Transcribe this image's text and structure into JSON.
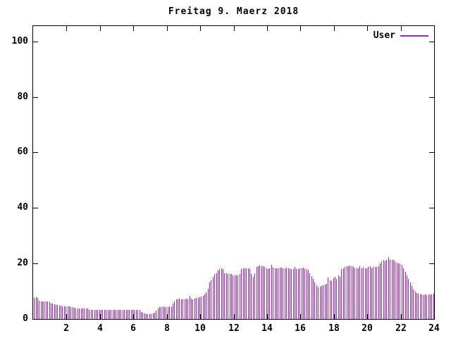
{
  "colors": {
    "bar": "#a020f0",
    "border": "#000000",
    "background": "#ffffff",
    "text": "#000000"
  },
  "chart_data": {
    "type": "bar",
    "style": "impulses",
    "title": "Freitag 9. Maerz 2018",
    "xlabel": "",
    "ylabel": "",
    "xlim": [
      0,
      24
    ],
    "ylim": [
      0,
      105.5
    ],
    "xticks": [
      2,
      4,
      6,
      8,
      10,
      12,
      14,
      16,
      18,
      20,
      22,
      24
    ],
    "yticks": [
      0,
      20,
      40,
      60,
      80,
      100
    ],
    "grid": false,
    "legend_position": "top-right-inside",
    "x_start": 0,
    "x_step_hours": 0.1,
    "series": [
      {
        "name": "User",
        "color": "#a020f0",
        "values": [
          7.5,
          7.9,
          7.5,
          6.5,
          6.3,
          6.3,
          6.4,
          6.3,
          6.3,
          6.2,
          5.6,
          5.5,
          5.4,
          5.1,
          5.0,
          4.9,
          4.7,
          4.6,
          4.6,
          4.5,
          4.6,
          4.5,
          4.3,
          4.2,
          4.1,
          3.9,
          3.8,
          3.8,
          3.7,
          3.8,
          3.7,
          3.8,
          3.7,
          3.3,
          3.4,
          3.3,
          3.2,
          3.3,
          3.3,
          3.4,
          3.3,
          3.2,
          3.3,
          3.3,
          3.4,
          3.3,
          3.2,
          3.3,
          3.3,
          3.4,
          3.3,
          3.2,
          3.3,
          3.3,
          3.4,
          3.3,
          3.2,
          3.3,
          3.3,
          3.4,
          3.3,
          3.2,
          3.3,
          3.3,
          2.5,
          2.2,
          2.0,
          1.8,
          1.7,
          1.7,
          1.8,
          2.0,
          2.4,
          3.0,
          3.8,
          4.3,
          4.4,
          4.5,
          4.4,
          4.3,
          4.4,
          4.5,
          4.4,
          5.5,
          6.3,
          7.0,
          7.2,
          7.3,
          7.2,
          7.1,
          7.2,
          7.3,
          7.2,
          8.3,
          7.3,
          7.2,
          7.3,
          7.6,
          7.7,
          7.8,
          8.0,
          8.4,
          8.8,
          9.7,
          11.0,
          13.2,
          14.0,
          15.3,
          16.2,
          16.6,
          17.4,
          17.9,
          18.3,
          17.9,
          16.6,
          16.6,
          16.3,
          16.2,
          16.2,
          15.8,
          15.8,
          15.8,
          15.8,
          16.2,
          17.9,
          18.3,
          18.2,
          18.3,
          18.3,
          18.0,
          16.2,
          15.3,
          16.6,
          18.7,
          19.1,
          19.2,
          19.0,
          19.1,
          18.8,
          18.3,
          18.0,
          18.3,
          19.6,
          18.6,
          18.3,
          18.2,
          18.3,
          18.6,
          18.4,
          18.3,
          18.3,
          18.4,
          18.3,
          17.9,
          17.9,
          18.0,
          18.7,
          18.0,
          17.9,
          18.2,
          18.3,
          18.4,
          17.9,
          17.9,
          17.6,
          16.6,
          15.5,
          14.4,
          13.2,
          12.1,
          11.5,
          11.7,
          11.9,
          12.1,
          12.3,
          12.7,
          14.9,
          14.0,
          13.8,
          14.6,
          15.3,
          14.4,
          15.7,
          15.3,
          17.9,
          18.3,
          18.7,
          19.1,
          19.1,
          19.4,
          19.1,
          18.7,
          18.3,
          18.3,
          18.3,
          19.1,
          18.3,
          18.7,
          18.3,
          18.3,
          18.7,
          19.1,
          18.3,
          18.7,
          18.7,
          18.7,
          19.1,
          20.0,
          20.9,
          21.3,
          20.9,
          21.3,
          22.4,
          21.3,
          21.3,
          21.3,
          20.9,
          20.4,
          20.0,
          20.0,
          19.6,
          18.3,
          17.0,
          15.7,
          14.4,
          13.1,
          11.8,
          10.6,
          9.9,
          9.4,
          9.1,
          8.9,
          8.8,
          8.7,
          8.8,
          8.7,
          8.8,
          8.9,
          9.0,
          9.2
        ]
      }
    ]
  }
}
